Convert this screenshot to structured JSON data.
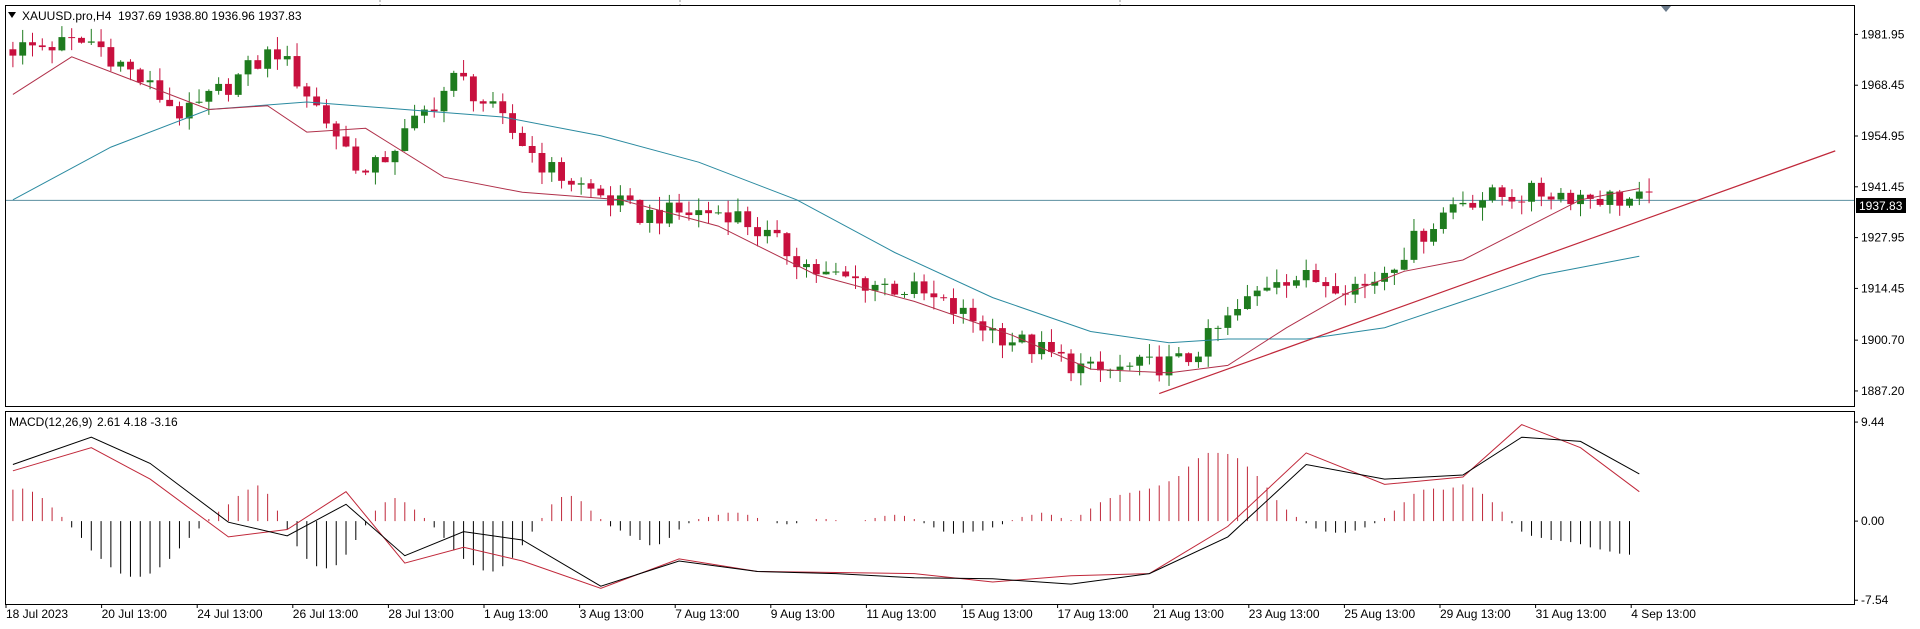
{
  "header": {
    "symbol": "XAUUSD.pro,H4",
    "ohlc": "1937.69 1938.80 1936.96 1937.83"
  },
  "macd_header": {
    "label": "MACD(12,26,9)",
    "values": "2.61 4.18 -3.16"
  },
  "current_price_label": "1937.83",
  "colors": {
    "bull_candle": "#1e7b1e",
    "bear_candle": "#c8103e",
    "fast_ma": "#b0304a",
    "slow_ma": "#2a8aa0",
    "trendline": "#c0283a",
    "price_line": "#5c8fa0",
    "macd_line": "#000000",
    "signal_line": "#c0283a",
    "hist_pos": "#c0283a",
    "hist_neg": "#000000"
  },
  "chart_data": [
    {
      "type": "candlestick",
      "title": "XAUUSD.pro,H4",
      "x_labels": [
        "18 Jul 2023",
        "20 Jul 13:00",
        "24 Jul 13:00",
        "26 Jul 13:00",
        "28 Jul 13:00",
        "1 Aug 13:00",
        "3 Aug 13:00",
        "7 Aug 13:00",
        "9 Aug 13:00",
        "11 Aug 13:00",
        "15 Aug 13:00",
        "17 Aug 13:00",
        "21 Aug 13:00",
        "23 Aug 13:00",
        "25 Aug 13:00",
        "29 Aug 13:00",
        "31 Aug 13:00",
        "4 Sep 13:00"
      ],
      "y_ticks": [
        1981.95,
        1968.45,
        1954.95,
        1941.45,
        1927.95,
        1914.45,
        1900.7,
        1887.2
      ],
      "y_tick_labels": [
        "1981.95",
        "1968.45",
        "1954.95",
        "1941.45",
        "1927.95",
        "1914.45",
        "1900.70",
        "1887.20"
      ],
      "ylim": [
        1883.2,
        1989.5
      ],
      "current_price": 1937.83,
      "key_points": [
        {
          "x": "18 Jul 2023",
          "close": 1978
        },
        {
          "x": "20 Jul 13:00",
          "close": 1980
        },
        {
          "x": "24 Jul 13:00",
          "close": 1960
        },
        {
          "x": "26 Jul 13:00",
          "close": 1978
        },
        {
          "x": "26 Jul 13:00 (after)",
          "close": 1944
        },
        {
          "x": "28 Jul 13:00",
          "close": 1971
        },
        {
          "x": "1 Aug 13:00",
          "close": 1946
        },
        {
          "x": "3 Aug 13:00",
          "close": 1934
        },
        {
          "x": "7 Aug 13:00",
          "close": 1935
        },
        {
          "x": "9 Aug 13:00",
          "close": 1918
        },
        {
          "x": "11 Aug 13:00",
          "close": 1914
        },
        {
          "x": "15 Aug 13:00",
          "close": 1902
        },
        {
          "x": "17 Aug 13:00",
          "close": 1892
        },
        {
          "x": "21 Aug 13:00",
          "close": 1895
        },
        {
          "x": "23 Aug 13:00",
          "close": 1918
        },
        {
          "x": "25 Aug 13:00",
          "close": 1915
        },
        {
          "x": "29 Aug 13:00",
          "close": 1938
        },
        {
          "x": "31 Aug 13:00",
          "close": 1940
        },
        {
          "x": "4 Sep 13:00",
          "close": 1937.83
        }
      ],
      "fast_ma_points": [
        [
          0,
          1966
        ],
        [
          6,
          1976
        ],
        [
          12,
          1970
        ],
        [
          20,
          1962
        ],
        [
          26,
          1963
        ],
        [
          30,
          1956
        ],
        [
          36,
          1957
        ],
        [
          44,
          1944
        ],
        [
          52,
          1940
        ],
        [
          62,
          1938
        ],
        [
          72,
          1931
        ],
        [
          82,
          1918
        ],
        [
          92,
          1911
        ],
        [
          102,
          1902
        ],
        [
          110,
          1893
        ],
        [
          118,
          1892
        ],
        [
          124,
          1894
        ],
        [
          130,
          1904
        ],
        [
          136,
          1913
        ],
        [
          142,
          1919
        ],
        [
          148,
          1922
        ],
        [
          154,
          1930
        ],
        [
          160,
          1938
        ],
        [
          166,
          1941
        ]
      ],
      "slow_ma_points": [
        [
          0,
          1938
        ],
        [
          10,
          1952
        ],
        [
          20,
          1962
        ],
        [
          30,
          1964
        ],
        [
          40,
          1962
        ],
        [
          50,
          1960
        ],
        [
          60,
          1955
        ],
        [
          70,
          1948
        ],
        [
          80,
          1938
        ],
        [
          90,
          1924
        ],
        [
          100,
          1912
        ],
        [
          110,
          1903
        ],
        [
          118,
          1900
        ],
        [
          124,
          1901
        ],
        [
          132,
          1901
        ],
        [
          140,
          1904
        ],
        [
          148,
          1911
        ],
        [
          156,
          1918
        ],
        [
          166,
          1923
        ]
      ],
      "trendline": [
        [
          117,
          1886.5
        ],
        [
          186,
          1951
        ]
      ]
    },
    {
      "type": "macd",
      "title": "MACD(12,26,9)",
      "y_ticks": [
        9.44,
        0.0,
        -7.54
      ],
      "y_tick_labels": [
        "9.44",
        "0.00",
        "-7.54"
      ],
      "ylim": [
        -7.9,
        10.4
      ],
      "histogram": [
        3,
        3.1,
        2.8,
        2.2,
        1.3,
        0.4,
        -0.6,
        -1.6,
        -2.8,
        -3.6,
        -4.4,
        -5.0,
        -5.3,
        -5.3,
        -5.0,
        -4.4,
        -3.6,
        -2.6,
        -1.6,
        -0.7,
        0.2,
        0.9,
        1.6,
        2.4,
        3.0,
        3.4,
        2.6,
        1.0,
        -0.8,
        -2.4,
        -3.6,
        -4.3,
        -4.5,
        -4.2,
        -3.2,
        -1.8,
        -0.4,
        1.0,
        1.8,
        2.2,
        1.8,
        1.1,
        0.3,
        -0.6,
        -1.6,
        -2.8,
        -3.6,
        -4.2,
        -4.7,
        -4.8,
        -4.3,
        -3.5,
        -2.3,
        -1.0,
        0.3,
        1.6,
        2.3,
        2.4,
        1.9,
        1.0,
        0.2,
        -0.5,
        -0.9,
        -1.4,
        -1.8,
        -2.3,
        -2.2,
        -1.6,
        -0.8,
        -0.2,
        0.2,
        0.4,
        0.6,
        0.8,
        0.8,
        0.6,
        0.3,
        0.0,
        -0.2,
        -0.3,
        -0.2,
        0.0,
        0.2,
        0.2,
        0.1,
        0.0,
        0.0,
        0.1,
        0.3,
        0.5,
        0.6,
        0.5,
        0.2,
        -0.2,
        -0.6,
        -1.0,
        -1.2,
        -1.1,
        -1.0,
        -0.9,
        -0.6,
        -0.3,
        0.1,
        0.4,
        0.6,
        0.8,
        0.6,
        0.3,
        0.1,
        0.6,
        1.2,
        1.8,
        2.2,
        2.5,
        2.7,
        2.9,
        3.1,
        3.4,
        3.8,
        4.3,
        5.2,
        6.0,
        6.5,
        6.5,
        6.4,
        6.0,
        5.2,
        4.3,
        3.2,
        2.0,
        1.1,
        0.4,
        -0.2,
        -0.7,
        -1.0,
        -1.1,
        -1.1,
        -0.9,
        -0.6,
        -0.2,
        0.3,
        1.0,
        1.8,
        2.6,
        3.0,
        3.1,
        3.0,
        3.2,
        3.5,
        3.2,
        2.6,
        1.8,
        0.9,
        -0.2,
        -1.0,
        -1.4,
        -1.6,
        -1.8,
        -1.9,
        -2.0,
        -2.2,
        -2.5,
        -2.7,
        -2.9,
        -3.1,
        -3.2
      ],
      "macd_line": [
        [
          0,
          5.4
        ],
        [
          8,
          8.0
        ],
        [
          14,
          5.5
        ],
        [
          22,
          -0.1
        ],
        [
          28,
          -1.4
        ],
        [
          34,
          1.6
        ],
        [
          40,
          -3.3
        ],
        [
          46,
          -1.0
        ],
        [
          52,
          -1.8
        ],
        [
          60,
          -6.2
        ],
        [
          68,
          -3.8
        ],
        [
          76,
          -4.8
        ],
        [
          84,
          -5.0
        ],
        [
          92,
          -5.4
        ],
        [
          100,
          -5.5
        ],
        [
          108,
          -6.0
        ],
        [
          116,
          -5.0
        ],
        [
          124,
          -1.5
        ],
        [
          132,
          5.4
        ],
        [
          140,
          4.0
        ],
        [
          148,
          4.4
        ],
        [
          154,
          8.0
        ],
        [
          160,
          7.6
        ],
        [
          166,
          4.5
        ]
      ],
      "signal_line": [
        [
          0,
          4.8
        ],
        [
          8,
          7.0
        ],
        [
          14,
          4.0
        ],
        [
          22,
          -1.5
        ],
        [
          28,
          -0.8
        ],
        [
          34,
          2.8
        ],
        [
          40,
          -4.0
        ],
        [
          46,
          -2.5
        ],
        [
          52,
          -3.8
        ],
        [
          60,
          -6.4
        ],
        [
          68,
          -3.6
        ],
        [
          76,
          -4.8
        ],
        [
          84,
          -4.9
        ],
        [
          92,
          -5.0
        ],
        [
          100,
          -5.8
        ],
        [
          108,
          -5.2
        ],
        [
          116,
          -5.0
        ],
        [
          124,
          -0.5
        ],
        [
          132,
          6.5
        ],
        [
          140,
          3.5
        ],
        [
          148,
          4.2
        ],
        [
          154,
          9.2
        ],
        [
          160,
          7.0
        ],
        [
          166,
          2.8
        ]
      ]
    }
  ]
}
